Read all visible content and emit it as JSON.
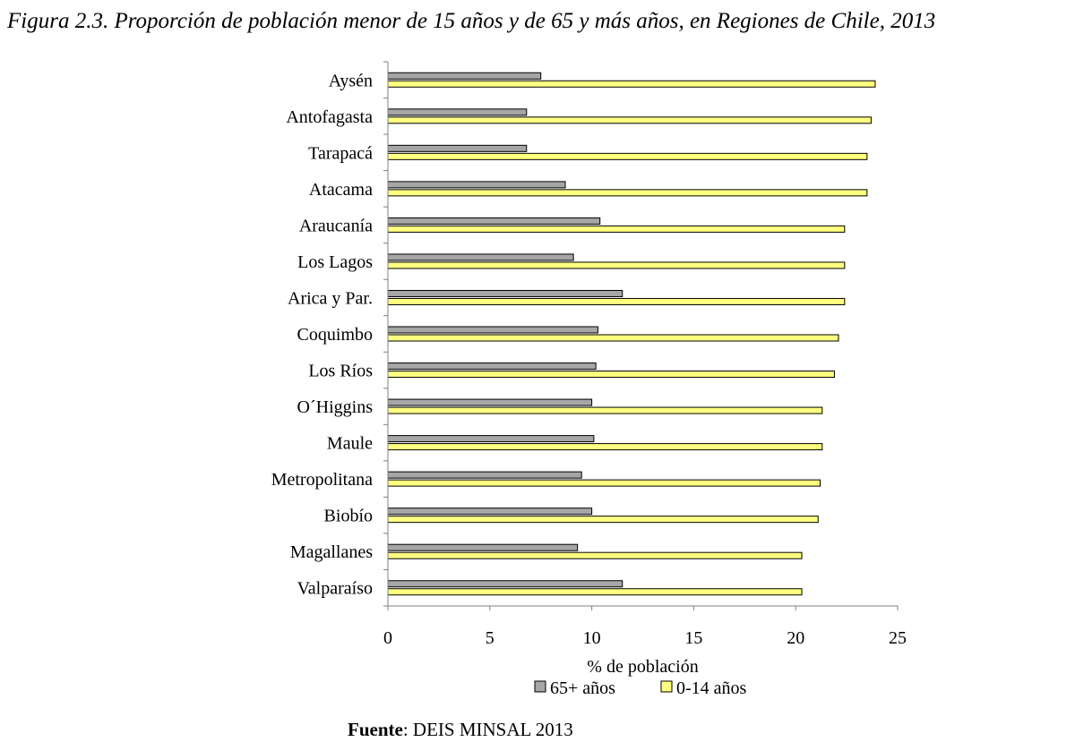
{
  "figure_title": "Figura 2.3. Proporción de población menor de 15 años y de 65 y más años, en Regiones de Chile, 2013",
  "source": {
    "label": "Fuente",
    "separator": ": ",
    "text": "DEIS MINSAL 2013"
  },
  "colors": {
    "series_65": "#a6a6a6",
    "series_014": "#ffff80",
    "stroke": "#000000",
    "axis": "#808080"
  },
  "chart_data": {
    "type": "bar",
    "orientation": "horizontal",
    "title": "",
    "xlabel": "% de población",
    "ylabel": "",
    "xlim": [
      0,
      25
    ],
    "xticks": [
      0,
      5,
      10,
      15,
      20,
      25
    ],
    "grid": false,
    "legend_position": "bottom",
    "categories": [
      "Aysén",
      "Antofagasta",
      "Tarapacá",
      "Atacama",
      "Araucanía",
      "Los Lagos",
      "Arica y Par.",
      "Coquimbo",
      "Los Ríos",
      "O´Higgins",
      "Maule",
      "Metropolitana",
      "Biobío",
      "Magallanes",
      "Valparaíso"
    ],
    "series": [
      {
        "name": "65+ años",
        "values": [
          7.5,
          6.8,
          6.8,
          8.7,
          10.4,
          9.1,
          11.5,
          10.3,
          10.2,
          10.0,
          10.1,
          9.5,
          10.0,
          9.3,
          11.5
        ]
      },
      {
        "name": "0-14 años",
        "values": [
          23.9,
          23.7,
          23.5,
          23.5,
          22.4,
          22.4,
          22.4,
          22.1,
          21.9,
          21.3,
          21.3,
          21.2,
          21.1,
          20.3,
          20.3
        ]
      }
    ]
  }
}
